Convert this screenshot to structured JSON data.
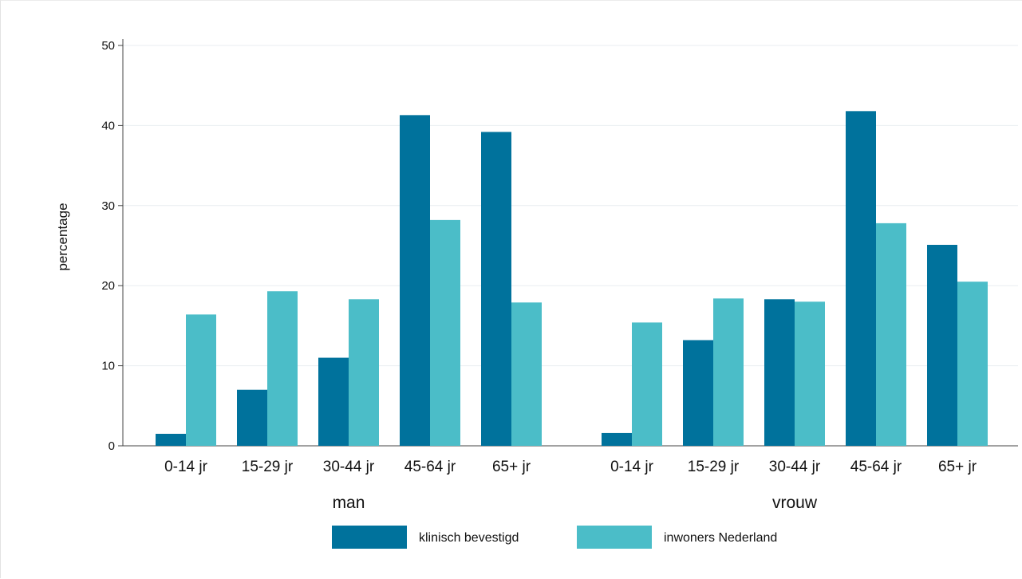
{
  "colors": {
    "series1": "#00729c",
    "series2": "#4bbdc8",
    "grid": "#e9eef1",
    "axis": "#444444"
  },
  "chart_data": {
    "type": "bar",
    "ylabel": "percentage",
    "ylim": [
      0,
      50
    ],
    "yticks": [
      0,
      10,
      20,
      30,
      40,
      50
    ],
    "grid": true,
    "legend_position": "bottom",
    "categories": [
      "0-14 jr",
      "15-29 jr",
      "30-44 jr",
      "45-64 jr",
      "65+ jr"
    ],
    "groups": [
      {
        "label": "man",
        "series": [
          {
            "name": "klinisch bevestigd",
            "values": [
              1.5,
              7.0,
              11.0,
              41.3,
              39.2
            ]
          },
          {
            "name": "inwoners Nederland",
            "values": [
              16.4,
              19.3,
              18.3,
              28.2,
              17.9
            ]
          }
        ]
      },
      {
        "label": "vrouw",
        "series": [
          {
            "name": "klinisch bevestigd",
            "values": [
              1.6,
              13.2,
              18.3,
              41.8,
              25.1
            ]
          },
          {
            "name": "inwoners Nederland",
            "values": [
              15.4,
              18.4,
              18.0,
              27.8,
              20.5
            ]
          }
        ]
      }
    ],
    "legend": [
      "klinisch bevestigd",
      "inwoners Nederland"
    ]
  }
}
